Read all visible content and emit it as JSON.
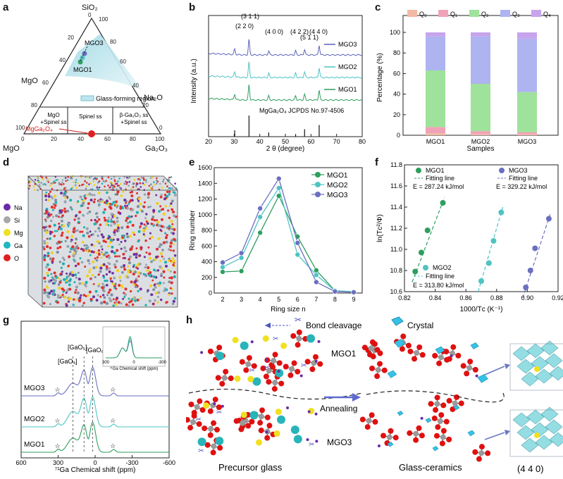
{
  "panels": {
    "a": {
      "label": "a",
      "apex_top": "SiO₂",
      "apex_left": "MgO",
      "apex_right": "Ga₂O₃",
      "side_right": "Na₂O",
      "side_left": "MgO",
      "ticks": [
        "0",
        "20",
        "40",
        "60",
        "80",
        "100"
      ],
      "mgo3": "MGO3",
      "mgo1": "MGO1",
      "region": "Glass-forming region",
      "ss_left": "MgO\n+Spinel ss",
      "ss_mid": "Spinel ss",
      "ss_right": "β-Ga₂O₃ ss\n+Spinel ss",
      "spinel": "MgGa₂O₄"
    },
    "b": {
      "label": "b",
      "xlabel": "2 θ (degree)",
      "ylabel": "Intensity (a.u.)",
      "legend": [
        "MGO3",
        "MGO2",
        "MGO1"
      ],
      "peaks": [
        "(2 2 0)",
        "(3 1 1)",
        "(4 0 0)",
        "(4 2 2)",
        "(5 1 1)",
        "(4 4 0)"
      ],
      "ref": "MgGa₂O₄ JCPDS No.97-4506",
      "xticks": [
        "20",
        "30",
        "40",
        "50",
        "60",
        "70",
        "80"
      ]
    },
    "c": {
      "label": "c",
      "xlabel": "Samples",
      "ylabel": "Percentage (%)",
      "legend": [
        "Q₀",
        "Q₁",
        "Q₂",
        "Q₃",
        "Q₄"
      ]
    },
    "d": {
      "label": "d",
      "legend": [
        "Na",
        "Si",
        "Mg",
        "Ga",
        "O"
      ]
    },
    "e": {
      "label": "e",
      "xlabel": "Ring size n",
      "ylabel": "Ring number"
    },
    "f": {
      "label": "f",
      "xlabel": "1000/Tᴄ (K⁻¹)",
      "ylabel": "ln(Tᴄ²/Φ)",
      "mgo1": "MGO1",
      "mgo2": "MGO2",
      "mgo3": "MGO3",
      "fit": "Fitting line",
      "e1": "E = 287.24 kJ/mol",
      "e2": "E = 313.80 kJ/mol",
      "e3": "E = 329.22 kJ/mol"
    },
    "g": {
      "label": "g",
      "xlabel": "⁷¹Ga Chemical shift (ppm)",
      "inset_xlabel": "⁷¹Ga Chemical shift (ppm)",
      "traces": [
        "MGO3",
        "MGO2",
        "MGO1"
      ],
      "sites": [
        "[GaO₄]",
        "[GaO₅]",
        "[GaO₆]"
      ],
      "xticks": [
        "600",
        "300",
        "0",
        "-300",
        "-600"
      ],
      "inset_ticks": [
        "300",
        "0",
        "-300"
      ],
      "star": "☆"
    },
    "h": {
      "label": "h",
      "bond": "Bond cleavage",
      "crystal": "Crystal",
      "mgo1": "MGO1",
      "mgo3": "MGO3",
      "annealing": "Annealing",
      "precursor": "Precursor glass",
      "gc": "Glass-ceramics",
      "plane": "(4 4 0)"
    }
  },
  "chart_data": [
    {
      "type": "line",
      "panel": "b",
      "x_range": [
        20,
        80
      ],
      "xlabel": "2 θ (degree)",
      "ylabel": "Intensity (a.u.)",
      "xticks": [
        20,
        30,
        40,
        50,
        60,
        70,
        80
      ],
      "series": [
        {
          "name": "MGO3",
          "color": "#5b63b8"
        },
        {
          "name": "MGO2",
          "color": "#4fc3c3"
        },
        {
          "name": "MGO1",
          "color": "#2e9e5e"
        }
      ],
      "peaks": [
        {
          "label": "(2 2 0)",
          "x": 30.2
        },
        {
          "label": "(3 1 1)",
          "x": 35.8
        },
        {
          "label": "(4 0 0)",
          "x": 43.5
        },
        {
          "label": "(4 2 2)",
          "x": 54.0
        },
        {
          "label": "(5 1 1)",
          "x": 57.5
        },
        {
          "label": "(4 4 0)",
          "x": 63.2
        }
      ],
      "reference_sticks": [
        {
          "x": 30.2,
          "h": 0.3
        },
        {
          "x": 35.8,
          "h": 1.0
        },
        {
          "x": 43.5,
          "h": 0.2
        },
        {
          "x": 54.0,
          "h": 0.12
        },
        {
          "x": 57.5,
          "h": 0.35
        },
        {
          "x": 63.2,
          "h": 0.55
        }
      ]
    },
    {
      "type": "bar",
      "panel": "c",
      "categories": [
        "MGO1",
        "MGO2",
        "MGO3"
      ],
      "ylim": [
        0,
        100
      ],
      "yticks": [
        0,
        20,
        40,
        60,
        80,
        100
      ],
      "series": [
        {
          "name": "Q₀",
          "values": [
            2,
            1,
            1
          ],
          "color": "#f2b9a4"
        },
        {
          "name": "Q₁",
          "values": [
            6,
            3,
            2
          ],
          "color": "#f0a3b8"
        },
        {
          "name": "Q₂",
          "values": [
            55,
            46,
            39
          ],
          "color": "#9fe29b"
        },
        {
          "name": "Q₃",
          "values": [
            33,
            46,
            52
          ],
          "color": "#aeb4f0"
        },
        {
          "name": "Q₄",
          "values": [
            4,
            4,
            6
          ],
          "color": "#c7a4ec"
        }
      ]
    },
    {
      "type": "line",
      "panel": "e",
      "x": [
        2,
        3,
        4,
        5,
        6,
        7,
        8,
        9
      ],
      "ylim": [
        0,
        1600
      ],
      "yticks": [
        0,
        200,
        400,
        600,
        800,
        1000,
        1200,
        1400,
        1600
      ],
      "series": [
        {
          "name": "MGO1",
          "values": [
            270,
            280,
            770,
            1240,
            720,
            290,
            30,
            15
          ],
          "color": "#2e9e5e"
        },
        {
          "name": "MGO2",
          "values": [
            330,
            450,
            970,
            1340,
            490,
            230,
            30,
            15
          ],
          "color": "#4fc3c3"
        },
        {
          "name": "MGO3",
          "values": [
            390,
            510,
            1080,
            1460,
            640,
            140,
            20,
            10
          ],
          "color": "#6a6fc0"
        }
      ]
    },
    {
      "type": "scatter",
      "panel": "f",
      "xlim": [
        0.82,
        0.92
      ],
      "ylim": [
        10.6,
        11.8
      ],
      "xticks": [
        0.82,
        0.84,
        0.86,
        0.88,
        0.9,
        0.92
      ],
      "yticks": [
        10.6,
        10.8,
        11.0,
        11.2,
        11.4,
        11.6,
        11.8
      ],
      "series": [
        {
          "name": "MGO1",
          "color": "#2e9e5e",
          "x": [
            0.827,
            0.831,
            0.835,
            0.845
          ],
          "y": [
            10.79,
            10.97,
            11.18,
            11.44
          ]
        },
        {
          "name": "MGO2",
          "color": "#4fc3c3",
          "x": [
            0.87,
            0.875,
            0.878,
            0.883
          ],
          "y": [
            10.7,
            10.87,
            11.08,
            11.35
          ]
        },
        {
          "name": "MGO3",
          "color": "#6a6fc0",
          "x": [
            0.899,
            0.902,
            0.905,
            0.914
          ],
          "y": [
            10.64,
            10.8,
            11.01,
            11.29
          ]
        }
      ]
    },
    {
      "type": "line",
      "panel": "g",
      "x_range": [
        600,
        -600
      ],
      "xticks": [
        600,
        300,
        0,
        -300,
        -600
      ],
      "series": [
        {
          "name": "MGO3",
          "color": "#6a6fc0"
        },
        {
          "name": "MGO2",
          "color": "#4fc3c3"
        },
        {
          "name": "MGO1",
          "color": "#2e9e5e"
        }
      ]
    }
  ]
}
